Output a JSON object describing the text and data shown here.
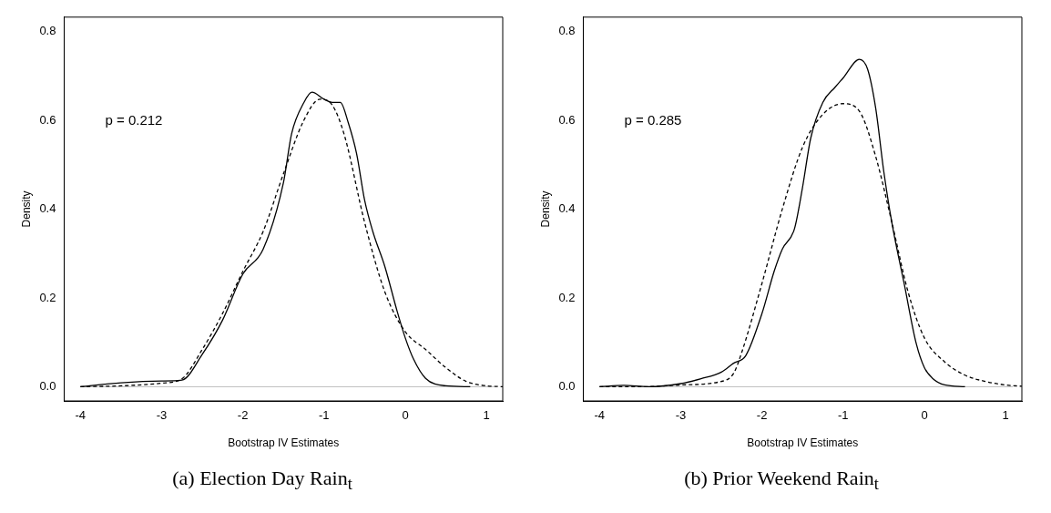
{
  "chart_data": [
    {
      "type": "line",
      "title": "(a) Election Day Rain$_{t}$",
      "xlabel": "Bootstrap IV Estimates",
      "ylabel": "Density",
      "xlim": [
        -4.2,
        1.2
      ],
      "ylim": [
        -0.032,
        0.833
      ],
      "xticks": [
        -4,
        -3,
        -2,
        -1,
        0,
        1
      ],
      "yticks": [
        {
          "value": 0,
          "label": "0.0"
        },
        {
          "value": 0.2,
          "label": "0.2"
        },
        {
          "value": 0.4,
          "label": "0.4"
        },
        {
          "value": 0.6,
          "label": "0.6"
        },
        {
          "value": 0.8,
          "label": "0.8"
        }
      ],
      "grid": false,
      "legend": false,
      "marker": "none",
      "annotations": [
        "p = 0.212"
      ],
      "ref_lines": [
        {
          "axis": "y",
          "value": 0,
          "color": "#bebebe"
        }
      ],
      "series": [
        {
          "color": "#000000",
          "line_style": "solid",
          "x": [
            -4,
            -3.5,
            -3,
            -2.75,
            -2.5,
            -2.25,
            -2,
            -1.75,
            -1.5,
            -1.4,
            -1.25,
            -1.15,
            -1,
            -0.9,
            -0.8,
            -0.7,
            -0.6,
            -0.5,
            -0.4,
            -0.25,
            -0.1,
            0,
            0.1,
            0.25,
            0.5,
            0.8
          ],
          "values": [
            0,
            0.009,
            0.013,
            0.015,
            0.073,
            0.15,
            0.254,
            0.31,
            0.46,
            0.57,
            0.64,
            0.664,
            0.648,
            0.641,
            0.641,
            0.594,
            0.526,
            0.42,
            0.35,
            0.27,
            0.17,
            0.11,
            0.063,
            0.019,
            0.002,
            0
          ]
        },
        {
          "color": "#000000",
          "line_style": "dashed",
          "x": [
            -4,
            -3.5,
            -3,
            -2.75,
            -2.5,
            -2.25,
            -2,
            -1.75,
            -1.5,
            -1.25,
            -1.05,
            -0.9,
            -0.75,
            -0.5,
            -0.25,
            0,
            0.25,
            0.5,
            0.75,
            1,
            1.2
          ],
          "values": [
            0,
            0.002,
            0.008,
            0.018,
            0.084,
            0.165,
            0.26,
            0.35,
            0.48,
            0.6,
            0.648,
            0.635,
            0.567,
            0.37,
            0.213,
            0.124,
            0.084,
            0.043,
            0.012,
            0.002,
            0
          ]
        }
      ]
    },
    {
      "type": "line",
      "title": "(b) Prior Weekend Rain$_{t}$",
      "xlabel": "Bootstrap IV Estimates",
      "ylabel": "Density",
      "xlim": [
        -4.2,
        1.2
      ],
      "ylim": [
        -0.032,
        0.833
      ],
      "xticks": [
        -4,
        -3,
        -2,
        -1,
        0,
        1
      ],
      "yticks": [
        {
          "value": 0,
          "label": "0.0"
        },
        {
          "value": 0.2,
          "label": "0.2"
        },
        {
          "value": 0.4,
          "label": "0.4"
        },
        {
          "value": 0.6,
          "label": "0.6"
        },
        {
          "value": 0.8,
          "label": "0.8"
        }
      ],
      "grid": false,
      "legend": false,
      "marker": "none",
      "annotations": [
        "p = 0.285"
      ],
      "ref_lines": [
        {
          "axis": "y",
          "value": 0,
          "color": "#bebebe"
        }
      ],
      "series": [
        {
          "color": "#000000",
          "line_style": "solid",
          "x": [
            -4,
            -3.7,
            -3.4,
            -3,
            -2.75,
            -2.5,
            -2.35,
            -2.2,
            -2,
            -1.85,
            -1.75,
            -1.6,
            -1.5,
            -1.4,
            -1.25,
            -1.1,
            -1,
            -0.8,
            -0.7,
            -0.6,
            -0.5,
            -0.4,
            -0.25,
            -0.1,
            0,
            0.1,
            0.25,
            0.5
          ],
          "values": [
            0,
            0.003,
            0,
            0.007,
            0.018,
            0.033,
            0.053,
            0.07,
            0.165,
            0.26,
            0.31,
            0.356,
            0.45,
            0.56,
            0.641,
            0.675,
            0.696,
            0.738,
            0.716,
            0.628,
            0.485,
            0.369,
            0.233,
            0.097,
            0.043,
            0.019,
            0.004,
            0
          ]
        },
        {
          "color": "#000000",
          "line_style": "dashed",
          "x": [
            -4,
            -3.5,
            -3,
            -2.5,
            -2.35,
            -2.25,
            -2,
            -1.75,
            -1.5,
            -1.25,
            -1,
            -0.8,
            -0.6,
            -0.4,
            -0.2,
            0,
            0.25,
            0.5,
            0.75,
            1,
            1.2
          ],
          "values": [
            0,
            0,
            0.004,
            0.012,
            0.03,
            0.077,
            0.233,
            0.4,
            0.54,
            0.614,
            0.638,
            0.621,
            0.519,
            0.37,
            0.213,
            0.11,
            0.056,
            0.026,
            0.012,
            0.004,
            0.001
          ]
        }
      ]
    }
  ]
}
